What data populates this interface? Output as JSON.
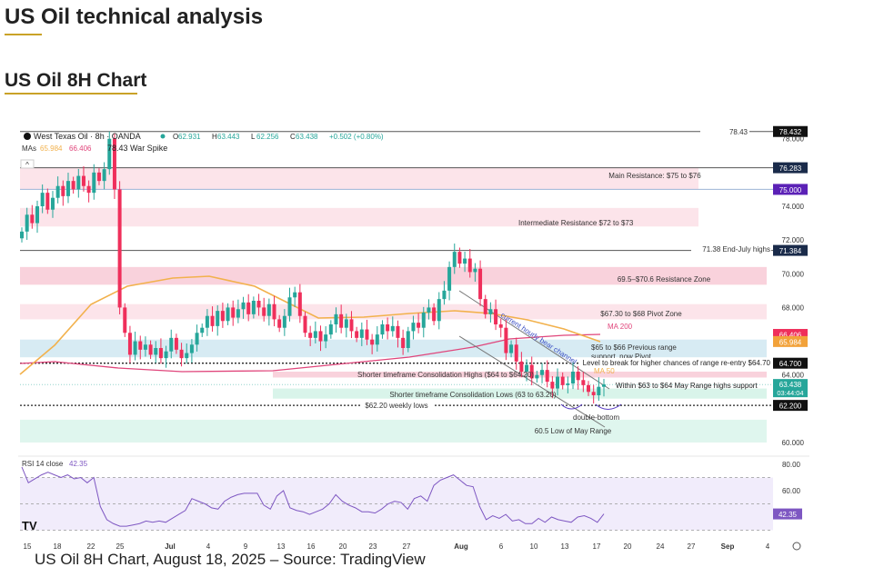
{
  "header": {
    "title": "US Oil technical analysis",
    "subtitle": "US Oil 8H Chart"
  },
  "caption": "US Oil 8H Chart, August 18, 2025 – Source: TradingView",
  "chart_data": {
    "type": "candlestick",
    "symbol": "West Texas Oil · 8h · OANDA",
    "ohlc": {
      "o_label": "O",
      "o": "62.931",
      "h_label": "H",
      "h": "63.443",
      "l_label": "L",
      "l": "62.256",
      "c_label": "C",
      "c": "63.438",
      "change": "+0.502 (+0.80%)"
    },
    "mas": {
      "label": "MAs",
      "ma50": "65.984",
      "ma200": "66.406"
    },
    "ylim": [
      59.5,
      79
    ],
    "y_ticks": [
      "78.000",
      "74.000",
      "72.000",
      "70.000",
      "68.000",
      "64.000",
      "60.000"
    ],
    "x_ticks": [
      "15",
      "18",
      "22",
      "25",
      "Jul",
      "4",
      "9",
      "13",
      "16",
      "20",
      "23",
      "27",
      "Aug",
      "6",
      "10",
      "13",
      "17",
      "20",
      "24",
      "27",
      "Sep",
      "4"
    ],
    "closes": [
      72.5,
      73.5,
      73,
      74,
      74.8,
      73.8,
      74.5,
      75.2,
      74.6,
      75.5,
      75.0,
      75.8,
      75.2,
      74.8,
      76.0,
      75.5,
      76.2,
      78.0,
      75.0,
      68.0,
      66.5,
      65.2,
      66.0,
      65.5,
      65.8,
      65.2,
      65.6,
      65.0,
      65.4,
      66.2,
      65.5,
      65.0,
      65.3,
      65.8,
      66.5,
      66.8,
      67.5,
      66.9,
      67.8,
      67.2,
      68.0,
      67.4,
      67.9,
      68.3,
      67.6,
      68.4,
      68.0,
      67.5,
      68.2,
      67.3,
      66.8,
      67.5,
      68.6,
      68.9,
      67.5,
      66.5,
      66.2,
      66.6,
      66.0,
      66.4,
      67.0,
      67.6,
      66.8,
      67.3,
      66.6,
      66.2,
      66.7,
      66.1,
      65.8,
      66.4,
      67.0,
      66.6,
      66.9,
      66.2,
      65.6,
      66.6,
      67.1,
      66.8,
      67.7,
      68.0,
      67.2,
      68.5,
      69.0,
      70.4,
      71.3,
      70.6,
      70.9,
      70.1,
      70.3,
      68.5,
      67.6,
      67.9,
      67.0,
      66.8,
      65.3,
      65.8,
      64.8,
      64.2,
      64.6,
      63.8,
      64.0,
      64.3,
      63.6,
      63.2,
      63.9,
      63.4,
      63.5,
      64.2,
      63.7,
      63.4,
      63.0,
      62.8,
      63.3,
      63.44
    ],
    "levels": [
      {
        "price": 78.43,
        "label": "78.43",
        "badge": "78.432",
        "color": "#111111"
      },
      {
        "price": 76.283,
        "badge": "76.283",
        "color": "#1a2b4a"
      },
      {
        "price": 75.0,
        "badge": "75.000",
        "color": "#5b21b6"
      },
      {
        "price": 71.384,
        "label": "71.38 End-July highs",
        "badge": "71.384",
        "color": "#1a2b4a"
      },
      {
        "price": 64.7,
        "label": "Level to break for higher chances of range re-entry $64.70",
        "badge": "64.700",
        "color": "#111111"
      },
      {
        "price": 62.2,
        "label": "$62.20 weekly lows",
        "badge": "62.200",
        "color": "#111111"
      }
    ],
    "price_badges": {
      "ma200": "66.406",
      "ma50": "65.984",
      "last": "63.438",
      "countdown": "03:44:04"
    },
    "zones": [
      {
        "label": "Main Resistance: $75 to $76",
        "from": 75,
        "to": 76.3,
        "color": "#fce4ea"
      },
      {
        "label": "Intermediate Resistance $72 to $73",
        "from": 72.8,
        "to": 73.9,
        "color": "#fce4ea"
      },
      {
        "label": "69.5–$70.6 Resistance Zone",
        "from": 69.35,
        "to": 70.4,
        "color": "#f9d2dc"
      },
      {
        "label": "$67.30 to $68 Pivot Zone",
        "from": 67.3,
        "to": 68.2,
        "color": "#fce4ea"
      },
      {
        "label": "$65 to $66 Previous range support, now Pivot",
        "from": 65.05,
        "to": 66.1,
        "color": "#d7ebf3"
      },
      {
        "label": "Shorter timeframe Consolidation Highs ($64 to $64.20)",
        "from": 63.85,
        "to": 64.2,
        "color": "#f9d2dc"
      },
      {
        "label": "Shorter timeframe Consolidation Lows (63 to 63.20)",
        "from": 62.6,
        "to": 63.2,
        "color": "#d9f4ea"
      },
      {
        "label": "60.5 Low of May Range",
        "from": 60,
        "to": 61.35,
        "color": "#dff6ee"
      }
    ],
    "annotations": {
      "war_spike": "78.43 War Spike",
      "channel": "current hourly bear channel",
      "ma200": "MA 200",
      "ma50": "MA 50",
      "within": "Within $63 to $64 May Range highs support",
      "double_bottom": "double-bottom"
    },
    "rsi": {
      "label": "RSI 14 close",
      "value": "42.35",
      "ticks": [
        "80.00",
        "60.00"
      ],
      "values": [
        78,
        66,
        69,
        72,
        74,
        72,
        70,
        72,
        69,
        70,
        66,
        70,
        48,
        38,
        35,
        33,
        33,
        34,
        35,
        37,
        36,
        37,
        36,
        39,
        42,
        45,
        54,
        52,
        50,
        47,
        46,
        52,
        55,
        57,
        58,
        58,
        58,
        49,
        46,
        56,
        60,
        47,
        45,
        44,
        42,
        44,
        46,
        50,
        57,
        52,
        49,
        47,
        44,
        44,
        43,
        46,
        50,
        52,
        51,
        46,
        54,
        56,
        52,
        64,
        68,
        70,
        72,
        68,
        64,
        63,
        48,
        38,
        41,
        39,
        42,
        37,
        38,
        35,
        35,
        39,
        36,
        40,
        38,
        37,
        36,
        40,
        41,
        39,
        36,
        42.35
      ]
    },
    "colors": {
      "up": "#26a69a",
      "down": "#ef2f5b",
      "ma50": "#f2b14c",
      "ma200": "#e0457b"
    }
  }
}
